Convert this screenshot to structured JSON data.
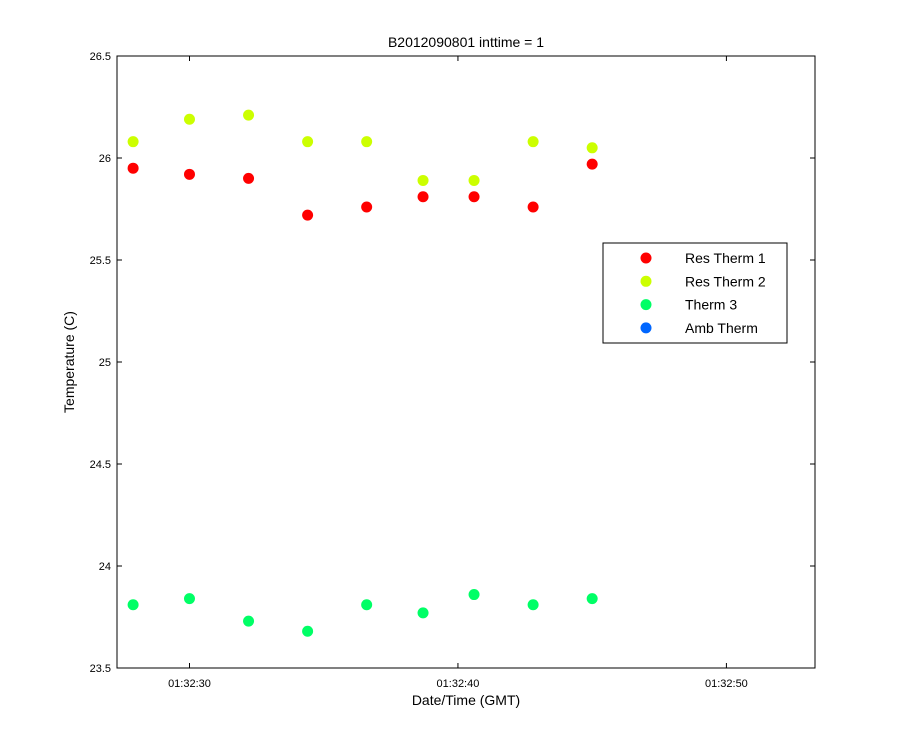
{
  "chart_data": {
    "type": "scatter",
    "title": "B2012090801 inttime = 1",
    "xlabel": "Date/Time (GMT)",
    "ylabel": "Temperature (C)",
    "x_unit": "time of day (GMT), HH:MM:SS",
    "xlim": [
      "01:32:27.3",
      "01:32:53.3"
    ],
    "ylim": [
      23.5,
      26.5
    ],
    "x_ticks": [
      "01:32:30",
      "01:32:40",
      "01:32:50"
    ],
    "y_ticks": [
      "23.5",
      "24",
      "24.5",
      "25",
      "25.5",
      "26",
      "26.5"
    ],
    "x": [
      "01:32:27.9",
      "01:32:30.0",
      "01:32:32.2",
      "01:32:34.4",
      "01:32:36.6",
      "01:32:38.7",
      "01:32:40.6",
      "01:32:42.8",
      "01:32:45.0"
    ],
    "series": [
      {
        "name": "Res Therm 1",
        "color": "#ff0000",
        "values": [
          25.95,
          25.92,
          25.9,
          25.72,
          25.76,
          25.81,
          25.81,
          25.76,
          25.97
        ]
      },
      {
        "name": "Res Therm 2",
        "color": "#ccff00",
        "values": [
          26.08,
          26.19,
          26.21,
          26.08,
          26.08,
          25.89,
          25.89,
          26.08,
          26.05
        ]
      },
      {
        "name": "Therm 3",
        "color": "#00ff66",
        "values": [
          23.81,
          23.84,
          23.73,
          23.68,
          23.81,
          23.77,
          23.86,
          23.81,
          23.84
        ]
      },
      {
        "name": "Amb Therm",
        "color": "#0066ff",
        "values": []
      }
    ],
    "legend_position": "right",
    "grid": false
  }
}
